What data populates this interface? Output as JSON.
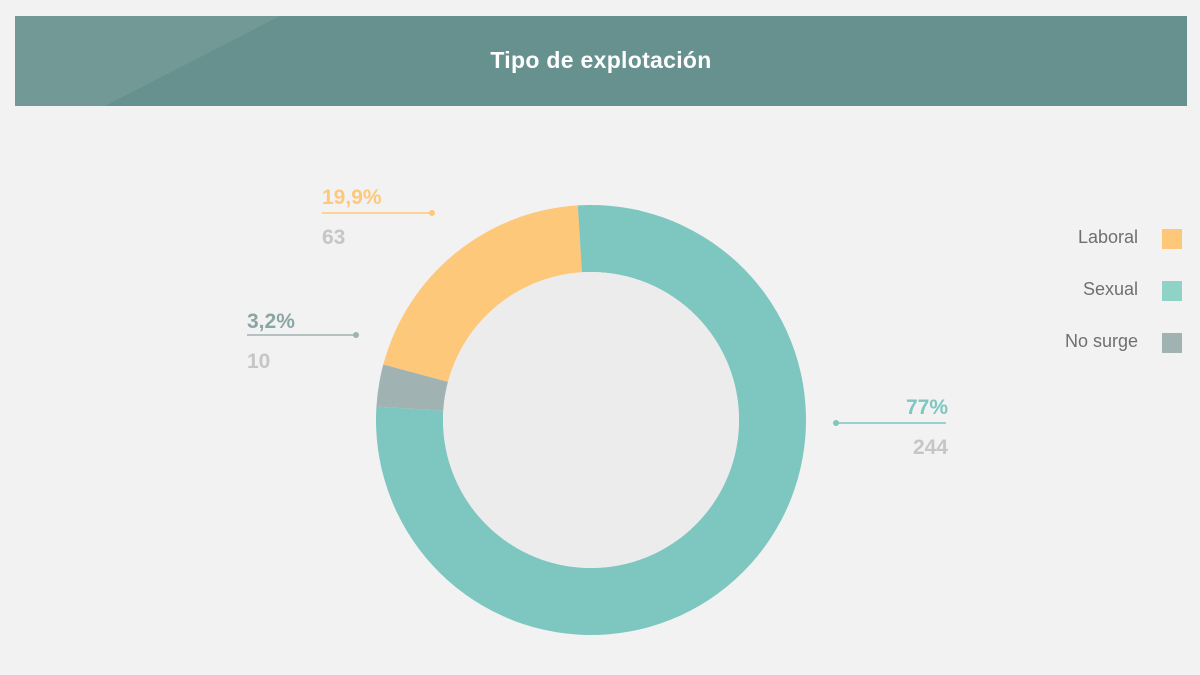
{
  "header": {
    "title": "Tipo de explotación"
  },
  "colors": {
    "laboral": "#fec87a",
    "sexual": "#7ec6c0",
    "no_surge": "#a0b3b2",
    "header_bg": "#66918e"
  },
  "legend": [
    {
      "label": "Laboral",
      "color": "#fec87a"
    },
    {
      "label": "Sexual",
      "color": "#7ec6c0"
    },
    {
      "label": "No surge",
      "color": "#a0b3b2"
    }
  ],
  "chart_data": {
    "type": "pie",
    "title": "Tipo de explotación",
    "donut": true,
    "legend_position": "right",
    "slices": [
      {
        "label": "Laboral",
        "percent_label": "19,9%",
        "value": 63,
        "percent": 19.9,
        "color": "#fec87a"
      },
      {
        "label": "Sexual",
        "percent_label": "77%",
        "value": 244,
        "percent": 77.0,
        "color": "#7ec6c0"
      },
      {
        "label": "No surge",
        "percent_label": "3,2%",
        "value": 10,
        "percent": 3.2,
        "color": "#a0b3b2"
      }
    ]
  }
}
